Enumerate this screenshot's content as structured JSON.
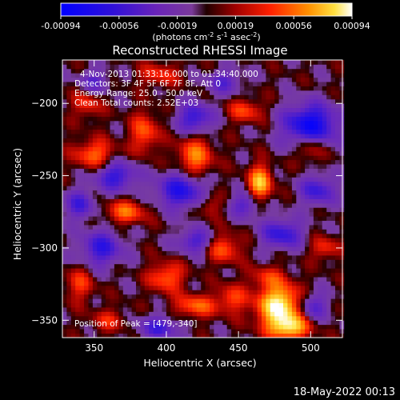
{
  "chart_data": {
    "type": "heatmap",
    "title": "Reconstructed RHESSI Image",
    "xlabel": "Heliocentric X (arcsec)",
    "ylabel": "Heliocentric Y (arcsec)",
    "xlim": [
      328,
      522
    ],
    "ylim": [
      -362,
      -170
    ],
    "x_ticks": [
      350,
      400,
      450,
      500
    ],
    "y_ticks": [
      -200,
      -250,
      -300,
      -350
    ],
    "colorbar": {
      "min": -0.00094,
      "max": 0.00094,
      "ticks": [
        "-0.00094",
        "-0.00056",
        "-0.00019",
        "0.00019",
        "0.00056",
        "0.00094"
      ],
      "label_prefix": "(photons cm",
      "label_e1": "-2",
      "label_mid": " s",
      "label_e2": "-1",
      "label_mid2": " asec",
      "label_e3": "-2",
      "label_suffix": ")"
    },
    "annotations": [
      "4-Nov-2013 01:33:16.000 to 01:34:40.000",
      "Detectors: 3F 4F 5F 6F 7F 8F, Att 0",
      "Energy Range: 25.0 - 50.0 keV",
      "Clean     Total counts: 2.52E+03"
    ],
    "peak_label": "Position of Peak = [479,-340]",
    "peak": {
      "x": 479,
      "y": -340
    }
  },
  "footer": "18-May-2022 00:13"
}
